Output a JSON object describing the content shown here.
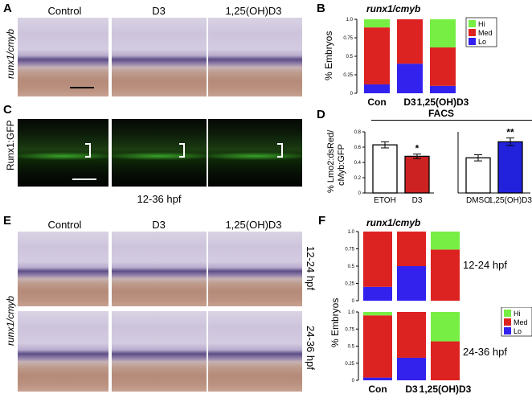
{
  "panels": {
    "A": {
      "label": "A",
      "ylabel": "runx1/cmyb",
      "columns": [
        "Control",
        "D3",
        "1,25(OH)D3"
      ]
    },
    "B": {
      "label": "B",
      "title": "runx1/cmyb",
      "ylabel": "% Embryos",
      "legend": [
        "Hi",
        "Med",
        "Lo"
      ]
    },
    "C": {
      "label": "C",
      "ylabel": "Runx1:GFP",
      "caption": "12-36 hpf"
    },
    "D": {
      "label": "D",
      "title": "FACS",
      "ylabel_line1": "% Lmo2:dsRed/",
      "ylabel_line2": "cMyb:GFP",
      "sig_left": "*",
      "sig_right": "**"
    },
    "E": {
      "label": "E",
      "ylabel": "runx1/cmyb",
      "columns": [
        "Control",
        "D3",
        "1,25(OH)D3"
      ],
      "row_labels": [
        "12-24 hpf",
        "24-36 hpf"
      ]
    },
    "F": {
      "label": "F",
      "title": "runx1/cmyb",
      "ylabel": "% Embryos",
      "legend": [
        "Hi",
        "Med",
        "Lo"
      ],
      "row_labels": [
        "12-24 hpf",
        "24-36 hpf"
      ]
    }
  },
  "colors": {
    "hi": "#77ee44",
    "med": "#dd2222",
    "lo": "#3322ee",
    "d3bar": "#cc2222",
    "calcbar": "#2222dd"
  },
  "chart_data": [
    {
      "type": "bar",
      "id": "B",
      "stacked": true,
      "title": "runx1/cmyb",
      "ylabel": "% Embryos",
      "categories": [
        "Con",
        "D3",
        "1,25(OH)D3"
      ],
      "yticks": [
        "0",
        "0.25",
        "0.5",
        "0.75",
        "1.0"
      ],
      "ylim": [
        0,
        1
      ],
      "series": [
        {
          "name": "Lo",
          "values": [
            0.12,
            0.4,
            0.1
          ]
        },
        {
          "name": "Med",
          "values": [
            0.77,
            0.6,
            0.52
          ]
        },
        {
          "name": "Hi",
          "values": [
            0.11,
            0.0,
            0.38
          ]
        }
      ]
    },
    {
      "type": "bar",
      "id": "D-left",
      "categories": [
        "ETOH",
        "D3"
      ],
      "values": [
        0.63,
        0.48
      ],
      "errors": [
        0.04,
        0.03
      ],
      "yticks": [
        "0",
        "0.2",
        "0.4",
        "0.6",
        "0.8"
      ],
      "ylim": [
        0,
        0.8
      ]
    },
    {
      "type": "bar",
      "id": "D-right",
      "categories": [
        "DMSO",
        "1,25(OH)D3"
      ],
      "values": [
        0.46,
        0.67
      ],
      "errors": [
        0.04,
        0.05
      ],
      "ylim": [
        0,
        0.8
      ]
    },
    {
      "type": "bar",
      "id": "F-top",
      "stacked": true,
      "categories": [
        "Con",
        "D3",
        "1,25(OH)D3"
      ],
      "yticks": [
        "0",
        "0.25",
        "0.5",
        "0.75",
        "1.0"
      ],
      "ylim": [
        0,
        1
      ],
      "series": [
        {
          "name": "Lo",
          "values": [
            0.2,
            0.5,
            0.0
          ]
        },
        {
          "name": "Med",
          "values": [
            0.8,
            0.5,
            0.74
          ]
        },
        {
          "name": "Hi",
          "values": [
            0.0,
            0.0,
            0.26
          ]
        }
      ]
    },
    {
      "type": "bar",
      "id": "F-bottom",
      "stacked": true,
      "categories": [
        "Con",
        "D3",
        "1,25(OH)D3"
      ],
      "yticks": [
        "0",
        "0.25",
        "0.5",
        "0.75",
        "1.0"
      ],
      "ylim": [
        0,
        1
      ],
      "series": [
        {
          "name": "Lo",
          "values": [
            0.04,
            0.33,
            0.0
          ]
        },
        {
          "name": "Med",
          "values": [
            0.91,
            0.67,
            0.57
          ]
        },
        {
          "name": "Hi",
          "values": [
            0.05,
            0.0,
            0.43
          ]
        }
      ]
    }
  ]
}
